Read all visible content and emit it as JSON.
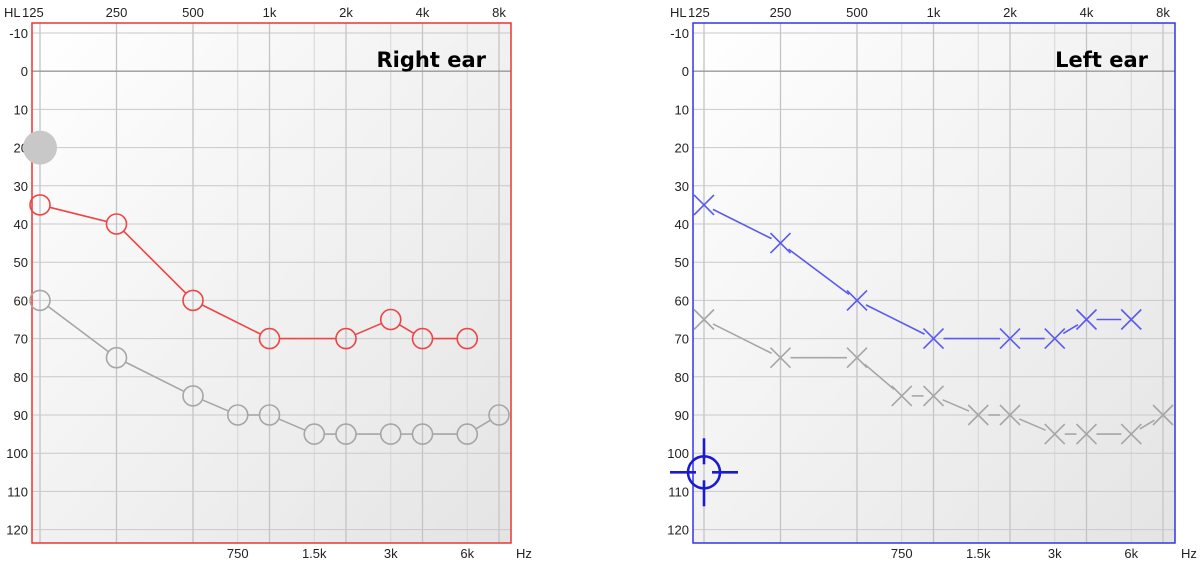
{
  "chart_data": [
    {
      "type": "line",
      "panel": "right",
      "title": "Right ear",
      "hl_label": "HL",
      "hz_label": "Hz",
      "top_ticks": [
        {
          "f": 125,
          "label": "125"
        },
        {
          "f": 250,
          "label": "250"
        },
        {
          "f": 500,
          "label": "500"
        },
        {
          "f": 1000,
          "label": "1k"
        },
        {
          "f": 2000,
          "label": "2k"
        },
        {
          "f": 4000,
          "label": "4k"
        },
        {
          "f": 8000,
          "label": "8k"
        }
      ],
      "bottom_ticks": [
        {
          "f": 750,
          "label": "750"
        },
        {
          "f": 1500,
          "label": "1.5k"
        },
        {
          "f": 3000,
          "label": "3k"
        },
        {
          "f": 6000,
          "label": "6k"
        }
      ],
      "y_ticks": [
        -10,
        0,
        10,
        20,
        30,
        40,
        50,
        60,
        70,
        80,
        90,
        100,
        110,
        120
      ],
      "ylim": [
        -10,
        120
      ],
      "zero_line": true,
      "frame_color": "#ee3333",
      "series": [
        {
          "marker": "circle",
          "color": "#ee4444",
          "x": [
            125,
            250,
            500,
            1000,
            2000,
            3000,
            4000,
            6000
          ],
          "y": [
            35,
            40,
            60,
            70,
            70,
            65,
            70,
            70
          ]
        },
        {
          "marker": "circle",
          "color": "#a6a6a6",
          "x": [
            125,
            250,
            500,
            750,
            1000,
            1500,
            2000,
            3000,
            4000,
            6000,
            8000
          ],
          "y": [
            60,
            75,
            85,
            90,
            90,
            95,
            95,
            95,
            95,
            95,
            90
          ]
        }
      ],
      "extra": {
        "shape": "filled-circle",
        "color": "#c8c8c8",
        "f": 125,
        "db": 20
      }
    },
    {
      "type": "line",
      "panel": "left",
      "title": "Left ear",
      "hl_label": "HL",
      "hz_label": "Hz",
      "top_ticks": [
        {
          "f": 125,
          "label": "125"
        },
        {
          "f": 250,
          "label": "250"
        },
        {
          "f": 500,
          "label": "500"
        },
        {
          "f": 1000,
          "label": "1k"
        },
        {
          "f": 2000,
          "label": "2k"
        },
        {
          "f": 4000,
          "label": "4k"
        },
        {
          "f": 8000,
          "label": "8k"
        }
      ],
      "bottom_ticks": [
        {
          "f": 750,
          "label": "750"
        },
        {
          "f": 1500,
          "label": "1.5k"
        },
        {
          "f": 3000,
          "label": "3k"
        },
        {
          "f": 6000,
          "label": "6k"
        }
      ],
      "y_ticks": [
        -10,
        0,
        10,
        20,
        30,
        40,
        50,
        60,
        70,
        80,
        90,
        100,
        110,
        120
      ],
      "ylim": [
        -10,
        120
      ],
      "zero_line": true,
      "frame_color": "#3333ee",
      "series": [
        {
          "marker": "x",
          "color": "#5a5af0",
          "x": [
            125,
            250,
            500,
            1000,
            2000,
            3000,
            4000,
            6000
          ],
          "y": [
            35,
            45,
            60,
            70,
            70,
            70,
            65,
            65
          ]
        },
        {
          "marker": "x",
          "color": "#a6a6a6",
          "x": [
            125,
            250,
            500,
            750,
            1000,
            1500,
            2000,
            3000,
            4000,
            6000,
            8000
          ],
          "y": [
            65,
            75,
            75,
            85,
            85,
            90,
            90,
            95,
            95,
            95,
            90
          ]
        }
      ],
      "extra": {
        "shape": "crosshair",
        "color": "#1a1ad0",
        "f": 125,
        "db": 105
      }
    }
  ]
}
